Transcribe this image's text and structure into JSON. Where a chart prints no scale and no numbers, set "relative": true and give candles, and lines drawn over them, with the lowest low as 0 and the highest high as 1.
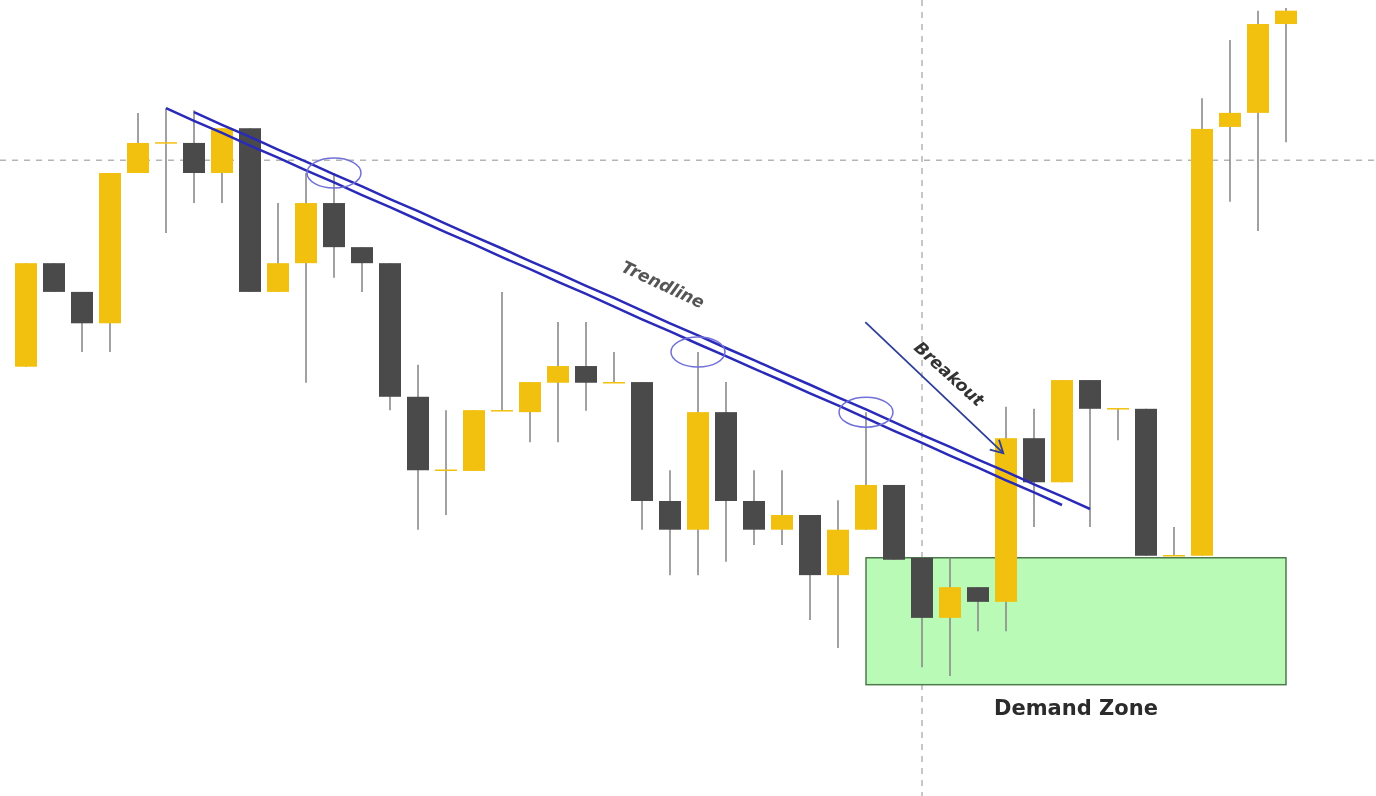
{
  "chart_data": {
    "type": "candlestick",
    "relative": true,
    "tick_labels": false,
    "categories": [
      null,
      null,
      null,
      null,
      null,
      null,
      null,
      null,
      null,
      null,
      null,
      null,
      null,
      null,
      null,
      null,
      null,
      null,
      null,
      null,
      null,
      null,
      null,
      null,
      null,
      null,
      null,
      null,
      null,
      null,
      null,
      null,
      null,
      null,
      null,
      null,
      null,
      null,
      null,
      null,
      null,
      null,
      null,
      null,
      null,
      null
    ],
    "ohlc": [
      [
        0.463,
        0.618,
        0.463,
        0.618
      ],
      [
        0.618,
        0.618,
        0.575,
        0.575
      ],
      [
        0.575,
        0.575,
        0.485,
        0.528
      ],
      [
        0.528,
        0.753,
        0.485,
        0.753
      ],
      [
        0.753,
        0.843,
        0.753,
        0.798
      ],
      [
        0.798,
        0.85,
        0.663,
        0.798
      ],
      [
        0.798,
        0.847,
        0.708,
        0.753
      ],
      [
        0.753,
        0.82,
        0.708,
        0.82
      ],
      [
        0.82,
        0.82,
        0.575,
        0.575
      ],
      [
        0.575,
        0.708,
        0.575,
        0.618
      ],
      [
        0.618,
        0.753,
        0.439,
        0.708
      ],
      [
        0.708,
        0.753,
        0.596,
        0.642
      ],
      [
        0.642,
        0.642,
        0.575,
        0.618
      ],
      [
        0.618,
        0.618,
        0.398,
        0.418
      ],
      [
        0.418,
        0.466,
        0.219,
        0.308
      ],
      [
        0.308,
        0.398,
        0.241,
        0.308
      ],
      [
        0.307,
        0.398,
        0.307,
        0.398
      ],
      [
        0.397,
        0.575,
        0.397,
        0.397
      ],
      [
        0.395,
        0.44,
        0.35,
        0.44
      ],
      [
        0.439,
        0.53,
        0.35,
        0.464
      ],
      [
        0.464,
        0.53,
        0.397,
        0.439
      ],
      [
        0.439,
        0.485,
        0.439,
        0.439
      ],
      [
        0.44,
        0.44,
        0.219,
        0.262
      ],
      [
        0.262,
        0.308,
        0.151,
        0.219
      ],
      [
        0.219,
        0.485,
        0.151,
        0.395
      ],
      [
        0.395,
        0.44,
        0.171,
        0.262
      ],
      [
        0.262,
        0.308,
        0.196,
        0.219
      ],
      [
        0.219,
        0.308,
        0.196,
        0.241
      ],
      [
        0.241,
        0.241,
        0.084,
        0.151
      ],
      [
        0.151,
        0.263,
        0.042,
        0.219
      ],
      [
        0.219,
        0.395,
        0.219,
        0.286
      ],
      [
        0.286,
        0.286,
        0.174,
        0.174
      ],
      [
        0.177,
        0.177,
        0.013,
        0.087
      ],
      [
        0.087,
        0.177,
        0,
        0.133
      ],
      [
        0.133,
        0.133,
        0.067,
        0.111
      ],
      [
        0.111,
        0.403,
        0.067,
        0.356
      ],
      [
        0.356,
        0.4,
        0.223,
        0.29
      ],
      [
        0.29,
        0.443,
        0.29,
        0.443
      ],
      [
        0.443,
        0.443,
        0.223,
        0.4
      ],
      [
        0.4,
        0.4,
        0.353,
        0.4
      ],
      [
        0.4,
        0.4,
        0.18,
        0.18
      ],
      [
        0.18,
        0.223,
        0.18,
        0.18
      ],
      [
        0.18,
        0.865,
        0.18,
        0.819
      ],
      [
        0.822,
        0.952,
        0.71,
        0.843
      ],
      [
        0.843,
        0.996,
        0.666,
        0.976
      ],
      [
        0.976,
        1,
        0.799,
        0.996
      ]
    ],
    "colors": [
      "#f2c10f",
      "#4a4a4a",
      "#4a4a4a",
      "#f2c10f",
      "#f2c10f",
      "#f2c10f",
      "#4a4a4a",
      "#f2c10f",
      "#4a4a4a",
      "#f2c10f",
      "#f2c10f",
      "#4a4a4a",
      "#4a4a4a",
      "#4a4a4a",
      "#4a4a4a",
      "#f2c10f",
      "#f2c10f",
      "#f2c10f",
      "#f2c10f",
      "#f2c10f",
      "#4a4a4a",
      "#f2c10f",
      "#4a4a4a",
      "#4a4a4a",
      "#f2c10f",
      "#4a4a4a",
      "#4a4a4a",
      "#f2c10f",
      "#4a4a4a",
      "#f2c10f",
      "#f2c10f",
      "#4a4a4a",
      "#4a4a4a",
      "#f2c10f",
      "#4a4a4a",
      "#f2c10f",
      "#4a4a4a",
      "#f2c10f",
      "#4a4a4a",
      "#f2c10f",
      "#4a4a4a",
      "#f2c10f",
      "#f2c10f",
      "#f2c10f",
      "#f2c10f",
      "#f2c10f"
    ],
    "series": [
      {
        "type": "line",
        "color": "#2a2ab8",
        "values": [
          null,
          null,
          null,
          null,
          null,
          0.85,
          0.831,
          0.813,
          0.794,
          0.776,
          0.757,
          0.739,
          0.72,
          0.702,
          0.683,
          0.664,
          0.646,
          0.627,
          0.609,
          0.59,
          0.572,
          0.553,
          0.534,
          0.516,
          0.497,
          0.479,
          0.46,
          0.442,
          0.423,
          0.405,
          0.386,
          0.367,
          0.349,
          0.33,
          0.312,
          0.293,
          0.275,
          0.256,
          null,
          null,
          null,
          null,
          null,
          null,
          null,
          null
        ]
      },
      {
        "type": "line",
        "color": "#2a2ab8",
        "values": [
          null,
          null,
          null,
          null,
          null,
          null,
          0.844,
          0.825,
          0.807,
          0.788,
          0.77,
          0.751,
          0.733,
          0.714,
          0.696,
          0.677,
          0.658,
          0.64,
          0.621,
          0.603,
          0.584,
          0.566,
          0.547,
          0.528,
          0.51,
          0.491,
          0.473,
          0.454,
          0.436,
          0.417,
          0.399,
          0.38,
          0.361,
          0.343,
          0.324,
          0.306,
          0.287,
          0.269,
          0.25,
          null,
          null,
          null,
          null,
          null,
          null,
          null
        ]
      }
    ],
    "line_style": "solid",
    "ref_lines": [
      {
        "axis": "y",
        "value": 0.772,
        "color": "#b5b5b5",
        "line_style": "dashed"
      }
    ],
    "bands": [
      {
        "axis": "y",
        "from": -0.013,
        "to": 0.177,
        "label": "Demand Zone",
        "color": "#b9fbb6"
      }
    ],
    "annotations": [
      "Trendline",
      "Breakout"
    ]
  }
}
